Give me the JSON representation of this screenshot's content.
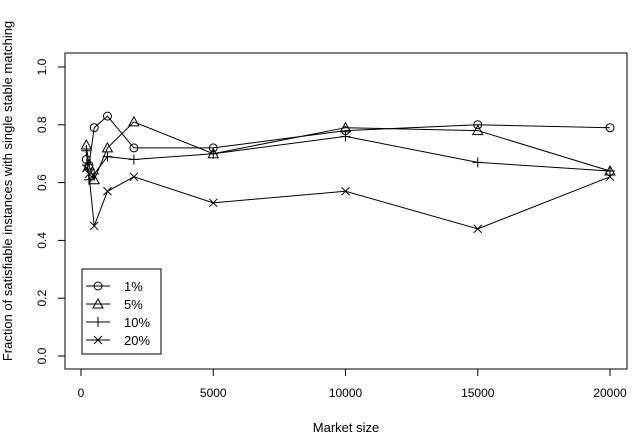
{
  "chart_data": {
    "type": "line",
    "title": "",
    "xlabel": "Market size",
    "ylabel": "Fraction of satisfiable instances with single stable matching",
    "xlim": [
      0,
      20000
    ],
    "ylim": [
      0.0,
      1.0
    ],
    "x_ticks": [
      0,
      5000,
      10000,
      15000,
      20000
    ],
    "y_ticks": [
      0.0,
      0.2,
      0.4,
      0.6,
      0.8,
      1.0
    ],
    "x_tick_labels": [
      "0",
      "5000",
      "10000",
      "15000",
      "20000"
    ],
    "y_tick_labels": [
      "0.0",
      "0.2",
      "0.4",
      "0.6",
      "0.8",
      "1.0"
    ],
    "grid": false,
    "legend_position": "bottom-left",
    "x": [
      200,
      300,
      500,
      1000,
      2000,
      5000,
      10000,
      15000,
      20000
    ],
    "series": [
      {
        "name": "1%",
        "marker": "circle",
        "values": [
          0.68,
          0.66,
          0.79,
          0.83,
          0.72,
          0.72,
          0.78,
          0.8,
          0.79
        ]
      },
      {
        "name": "5%",
        "marker": "triangle",
        "values": [
          0.73,
          0.66,
          0.61,
          0.72,
          0.81,
          0.7,
          0.79,
          0.78,
          0.64
        ]
      },
      {
        "name": "10%",
        "marker": "plus",
        "values": [
          0.71,
          0.61,
          0.63,
          0.69,
          0.68,
          0.7,
          0.76,
          0.67,
          0.64
        ]
      },
      {
        "name": "20%",
        "marker": "cross",
        "values": [
          0.65,
          0.63,
          0.45,
          0.57,
          0.62,
          0.53,
          0.57,
          0.44,
          0.62
        ]
      }
    ]
  }
}
